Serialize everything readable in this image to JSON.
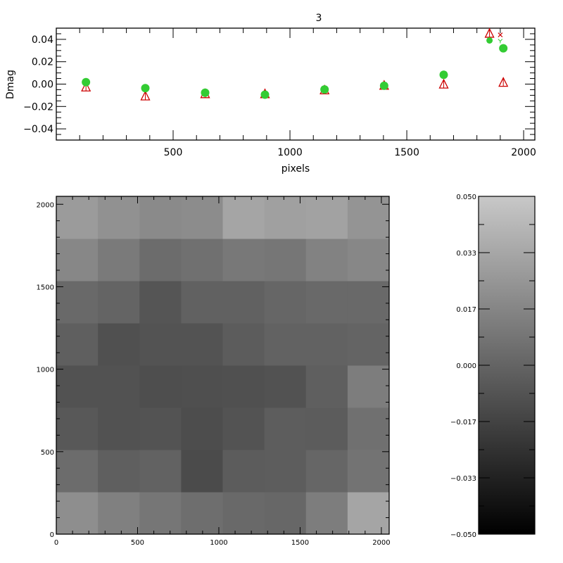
{
  "chart_data": [
    {
      "type": "scatter",
      "title": "3",
      "xlabel": "pixels",
      "ylabel": "Dmag",
      "xlim": [
        0,
        2048
      ],
      "ylim": [
        -0.05,
        0.05
      ],
      "xticks": [
        500,
        1000,
        1500,
        2000
      ],
      "xtick_labels": [
        "500",
        "1000",
        "1500",
        "2000"
      ],
      "yticks": [
        -0.04,
        -0.02,
        0.0,
        0.02,
        0.04
      ],
      "ytick_labels": [
        "−0.04",
        "−0.02",
        "0.00",
        "0.02",
        "0.04"
      ],
      "grid": false,
      "series": [
        {
          "marker": "filled-circle",
          "color": "#33cc33",
          "x": [
            127,
            381,
            637,
            893,
            1148,
            1403,
            1658,
            1854,
            1913
          ],
          "y": [
            0.0017,
            -0.0036,
            -0.0077,
            -0.0094,
            -0.0048,
            -0.0015,
            0.0083,
            0.039,
            0.032
          ]
        },
        {
          "marker": "open-triangle",
          "color": "#cc0000",
          "x": [
            127,
            381,
            637,
            893,
            1148,
            1403,
            1658,
            1854,
            1913
          ],
          "y": [
            -0.003,
            -0.011,
            -0.009,
            -0.009,
            -0.0056,
            -0.0015,
            -0.0004,
            0.045,
            0.0012
          ]
        },
        {
          "marker": "x",
          "color": "#cc0000",
          "x": [
            1900
          ],
          "y": [
            0.044
          ]
        }
      ]
    },
    {
      "type": "heatmap",
      "xlim": [
        0,
        2048
      ],
      "ylim": [
        0,
        2048
      ],
      "xticks": [
        0,
        500,
        1000,
        1500,
        2000
      ],
      "xtick_labels": [
        "0",
        "500",
        "1000",
        "1500",
        "2000"
      ],
      "yticks": [
        0,
        500,
        1000,
        1500,
        2000
      ],
      "ytick_labels": [
        "0",
        "500",
        "1000",
        "1500",
        "2000"
      ],
      "colormap": "grayscale",
      "zlim": [
        -0.05,
        0.05
      ],
      "cell_size": 256,
      "z_rows_bottom_to_top": [
        [
          0.021,
          0.014,
          0.009,
          0.005,
          0.0025,
          0.0015,
          0.0125,
          0.0325
        ],
        [
          0.004,
          -0.0025,
          -0.001,
          -0.0125,
          -0.004,
          -0.0035,
          0.001,
          0.0075
        ],
        [
          -0.006,
          -0.009,
          -0.0085,
          -0.0115,
          -0.0085,
          -0.0035,
          -0.004,
          0.006
        ],
        [
          -0.009,
          -0.009,
          -0.011,
          -0.0105,
          -0.01,
          -0.009,
          -0.0025,
          0.0125
        ],
        [
          -0.0025,
          -0.01,
          -0.0085,
          -0.0085,
          -0.004,
          -0.001,
          -0.001,
          0.0
        ],
        [
          0.0025,
          0.0,
          -0.0075,
          -0.0015,
          -0.0015,
          0.001,
          0.0025,
          0.0025
        ],
        [
          0.0175,
          0.011,
          0.004,
          0.006,
          0.01,
          0.009,
          0.015,
          0.0175
        ],
        [
          0.0275,
          0.0225,
          0.019,
          0.02,
          0.0325,
          0.03,
          0.031,
          0.024
        ]
      ],
      "colorbar": {
        "range": [
          -0.05,
          0.05
        ],
        "ticks": [
          -0.05,
          -0.0333,
          -0.0167,
          0.0,
          0.0167,
          0.0333,
          0.05
        ],
        "tick_labels": [
          "−0.050",
          "−0.033",
          "−0.017",
          "0.000",
          "0.017",
          "0.033",
          "0.050"
        ]
      }
    }
  ]
}
